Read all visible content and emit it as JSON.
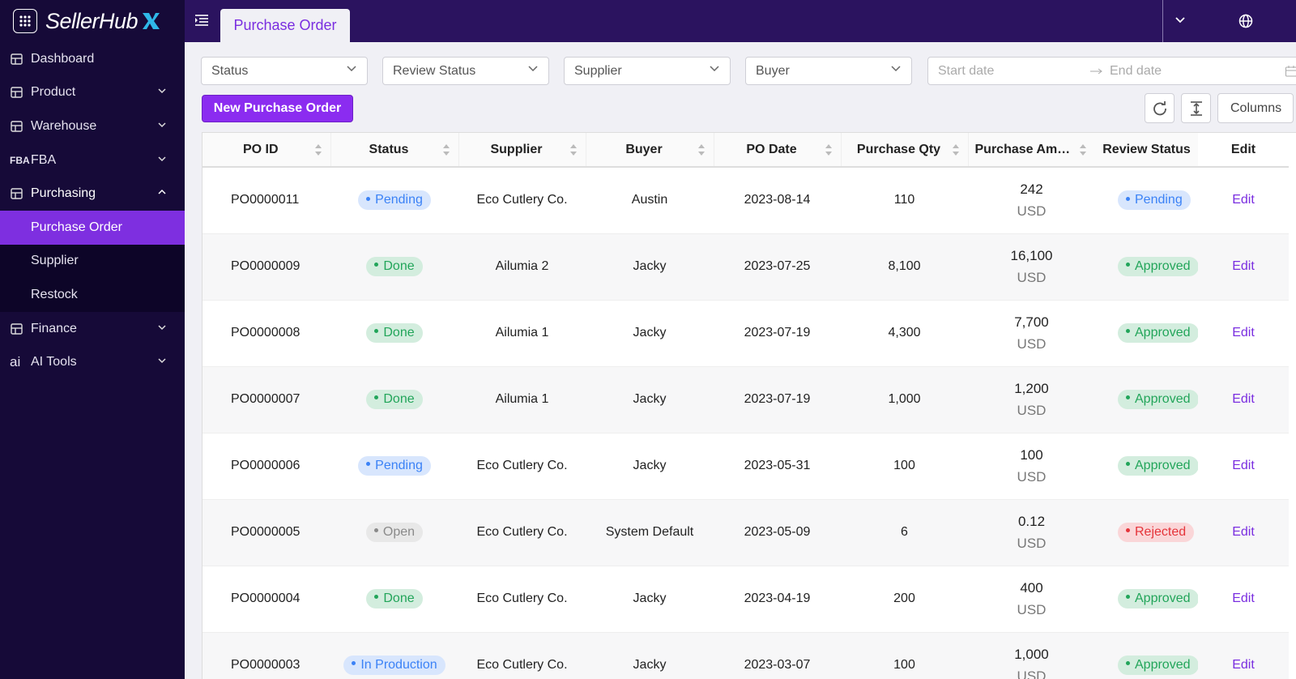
{
  "sidebar": {
    "brand": "SellerHub",
    "menu": [
      {
        "label": "Dashboard"
      },
      {
        "label": "Product",
        "expanded": false
      },
      {
        "label": "Warehouse",
        "expanded": false
      },
      {
        "label": "FBA",
        "icon_text": "FBA",
        "expanded": false
      },
      {
        "label": "Purchasing",
        "expanded": true,
        "children": [
          {
            "label": "Purchase Order",
            "active": true
          },
          {
            "label": "Supplier"
          },
          {
            "label": "Restock"
          }
        ]
      },
      {
        "label": "Finance",
        "expanded": false
      },
      {
        "label": "AI Tools",
        "icon_text": "ai",
        "expanded": false
      }
    ]
  },
  "header": {
    "tab": "Purchase Order"
  },
  "filters": {
    "selects": [
      "Status",
      "Review Status",
      "Supplier",
      "Buyer"
    ],
    "start_date": "Start date",
    "end_date": "End date"
  },
  "toolbar": {
    "new_button": "New Purchase Order",
    "columns_button": "Columns"
  },
  "table": {
    "columns": [
      {
        "label": "PO ID",
        "sortable": true
      },
      {
        "label": "Status",
        "sortable": true
      },
      {
        "label": "Supplier",
        "sortable": true
      },
      {
        "label": "Buyer",
        "sortable": true
      },
      {
        "label": "PO Date",
        "sortable": true
      },
      {
        "label": "Purchase Qty",
        "sortable": true
      },
      {
        "label": "Purchase Amount",
        "sortable": true
      },
      {
        "label": "Review Status",
        "sortable": false
      },
      {
        "label": "Edit",
        "sortable": false
      }
    ],
    "rows": [
      {
        "po_id": "PO0000011",
        "status": {
          "label": "Pending",
          "color": "#3b82f6"
        },
        "supplier": "Eco Cutlery Co.",
        "buyer": "Austin",
        "po_date": "2023-08-14",
        "purchase_qty": "110",
        "amount": "242",
        "currency": "USD",
        "review_status": {
          "label": "Pending",
          "color": "#3b82f6"
        },
        "action": "Edit"
      },
      {
        "po_id": "PO0000009",
        "status": {
          "label": "Done",
          "color": "#22a55a"
        },
        "supplier": "Ailumia 2",
        "buyer": "Jacky",
        "po_date": "2023-07-25",
        "purchase_qty": "8,100",
        "amount": "16,100",
        "currency": "USD",
        "review_status": {
          "label": "Approved",
          "color": "#22a55a"
        },
        "action": "Edit"
      },
      {
        "po_id": "PO0000008",
        "status": {
          "label": "Done",
          "color": "#22a55a"
        },
        "supplier": "Ailumia 1",
        "buyer": "Jacky",
        "po_date": "2023-07-19",
        "purchase_qty": "4,300",
        "amount": "7,700",
        "currency": "USD",
        "review_status": {
          "label": "Approved",
          "color": "#22a55a"
        },
        "action": "Edit"
      },
      {
        "po_id": "PO0000007",
        "status": {
          "label": "Done",
          "color": "#22a55a"
        },
        "supplier": "Ailumia 1",
        "buyer": "Jacky",
        "po_date": "2023-07-19",
        "purchase_qty": "1,000",
        "amount": "1,200",
        "currency": "USD",
        "review_status": {
          "label": "Approved",
          "color": "#22a55a"
        },
        "action": "Edit"
      },
      {
        "po_id": "PO0000006",
        "status": {
          "label": "Pending",
          "color": "#3b82f6"
        },
        "supplier": "Eco Cutlery Co.",
        "buyer": "Jacky",
        "po_date": "2023-05-31",
        "purchase_qty": "100",
        "amount": "100",
        "currency": "USD",
        "review_status": {
          "label": "Approved",
          "color": "#22a55a"
        },
        "action": "Edit"
      },
      {
        "po_id": "PO0000005",
        "status": {
          "label": "Open",
          "color": "#8a8a8a"
        },
        "supplier": "Eco Cutlery Co.",
        "buyer": "System Default",
        "po_date": "2023-05-09",
        "purchase_qty": "6",
        "amount": "0.12",
        "currency": "USD",
        "review_status": {
          "label": "Rejected",
          "color": "#e5343a"
        },
        "action": "Edit"
      },
      {
        "po_id": "PO0000004",
        "status": {
          "label": "Done",
          "color": "#22a55a"
        },
        "supplier": "Eco Cutlery Co.",
        "buyer": "Jacky",
        "po_date": "2023-04-19",
        "purchase_qty": "200",
        "amount": "400",
        "currency": "USD",
        "review_status": {
          "label": "Approved",
          "color": "#22a55a"
        },
        "action": "Edit"
      },
      {
        "po_id": "PO0000003",
        "status": {
          "label": "In Production",
          "color": "#3b82f6"
        },
        "supplier": "Eco Cutlery Co.",
        "buyer": "Jacky",
        "po_date": "2023-03-07",
        "purchase_qty": "100",
        "amount": "1,000",
        "currency": "USD",
        "review_status": {
          "label": "Approved",
          "color": "#22a55a"
        },
        "action": "Edit"
      }
    ]
  }
}
